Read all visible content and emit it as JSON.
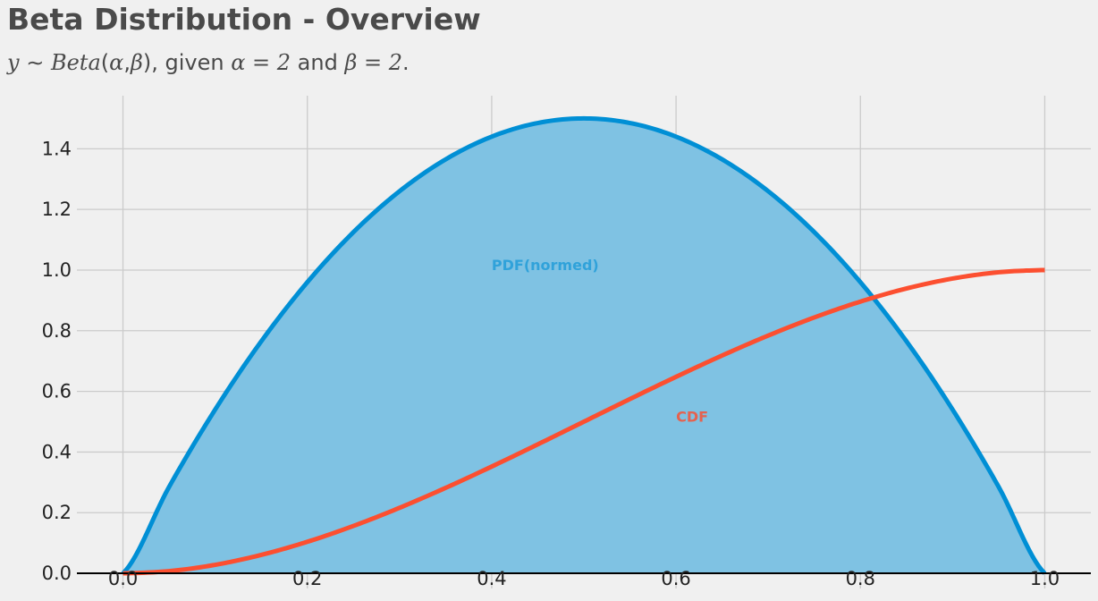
{
  "title": "Beta Distribution - Overview",
  "subtitle": {
    "y": "y",
    "tilde": "∼",
    "beta_func": "Beta",
    "open": "(",
    "alpha": "α",
    "comma": ",",
    "beta": "β",
    "close": ")",
    "given_text": ", given ",
    "alpha_val": "α = 2",
    "and_text": " and ",
    "beta_val": "β = 2",
    "period": "."
  },
  "chart_data": {
    "type": "line",
    "distribution": "Beta",
    "alpha": 2,
    "beta": 2,
    "x": [
      0.0,
      0.05,
      0.1,
      0.15,
      0.2,
      0.25,
      0.3,
      0.35,
      0.4,
      0.45,
      0.5,
      0.55,
      0.6,
      0.65,
      0.7,
      0.75,
      0.8,
      0.85,
      0.9,
      0.95,
      1.0
    ],
    "series": [
      {
        "values": [
          0.0,
          0.285,
          0.54,
          0.765,
          0.96,
          1.125,
          1.26,
          1.365,
          1.44,
          1.485,
          1.5,
          1.485,
          1.44,
          1.365,
          1.26,
          1.125,
          0.96,
          0.765,
          0.54,
          0.285,
          0.0
        ],
        "color": "#008fd5",
        "filled": true,
        "fill_color": "#7fc2e3"
      },
      {
        "values": [
          0.0,
          0.00725,
          0.028,
          0.06075,
          0.104,
          0.15625,
          0.216,
          0.28175,
          0.352,
          0.42525,
          0.5,
          0.57475,
          0.648,
          0.71825,
          0.784,
          0.84375,
          0.896,
          0.93925,
          0.972,
          0.99275,
          1.0
        ],
        "color": "#fc4f30",
        "filled": false
      }
    ],
    "annotations": [
      {
        "text": "PDF(normed)",
        "x": 0.4,
        "y": 1.0,
        "color": "#30a2da"
      },
      {
        "text": "CDF",
        "x": 0.6,
        "y": 0.5,
        "color": "#e5624f"
      }
    ],
    "xlim": [
      -0.05,
      1.05
    ],
    "ylim": [
      -0.05,
      1.575
    ],
    "x_ticks": [
      {
        "value": 0.0,
        "label": "0.0"
      },
      {
        "value": 0.2,
        "label": "0.2"
      },
      {
        "value": 0.4,
        "label": "0.4"
      },
      {
        "value": 0.6,
        "label": "0.6"
      },
      {
        "value": 0.8,
        "label": "0.8"
      },
      {
        "value": 1.0,
        "label": "1.0"
      }
    ],
    "y_ticks": [
      {
        "value": 0.0,
        "label": "0.0"
      },
      {
        "value": 0.2,
        "label": "0.2"
      },
      {
        "value": 0.4,
        "label": "0.4"
      },
      {
        "value": 0.6,
        "label": "0.6"
      },
      {
        "value": 0.8,
        "label": "0.8"
      },
      {
        "value": 1.0,
        "label": "1.0"
      },
      {
        "value": 1.2,
        "label": "1.2"
      },
      {
        "value": 1.4,
        "label": "1.4"
      }
    ],
    "grid": true,
    "baseline_y": 0.0,
    "colors": {
      "background": "#f0f0f0",
      "grid": "#cbcbcb",
      "baseline": "#000000"
    }
  }
}
